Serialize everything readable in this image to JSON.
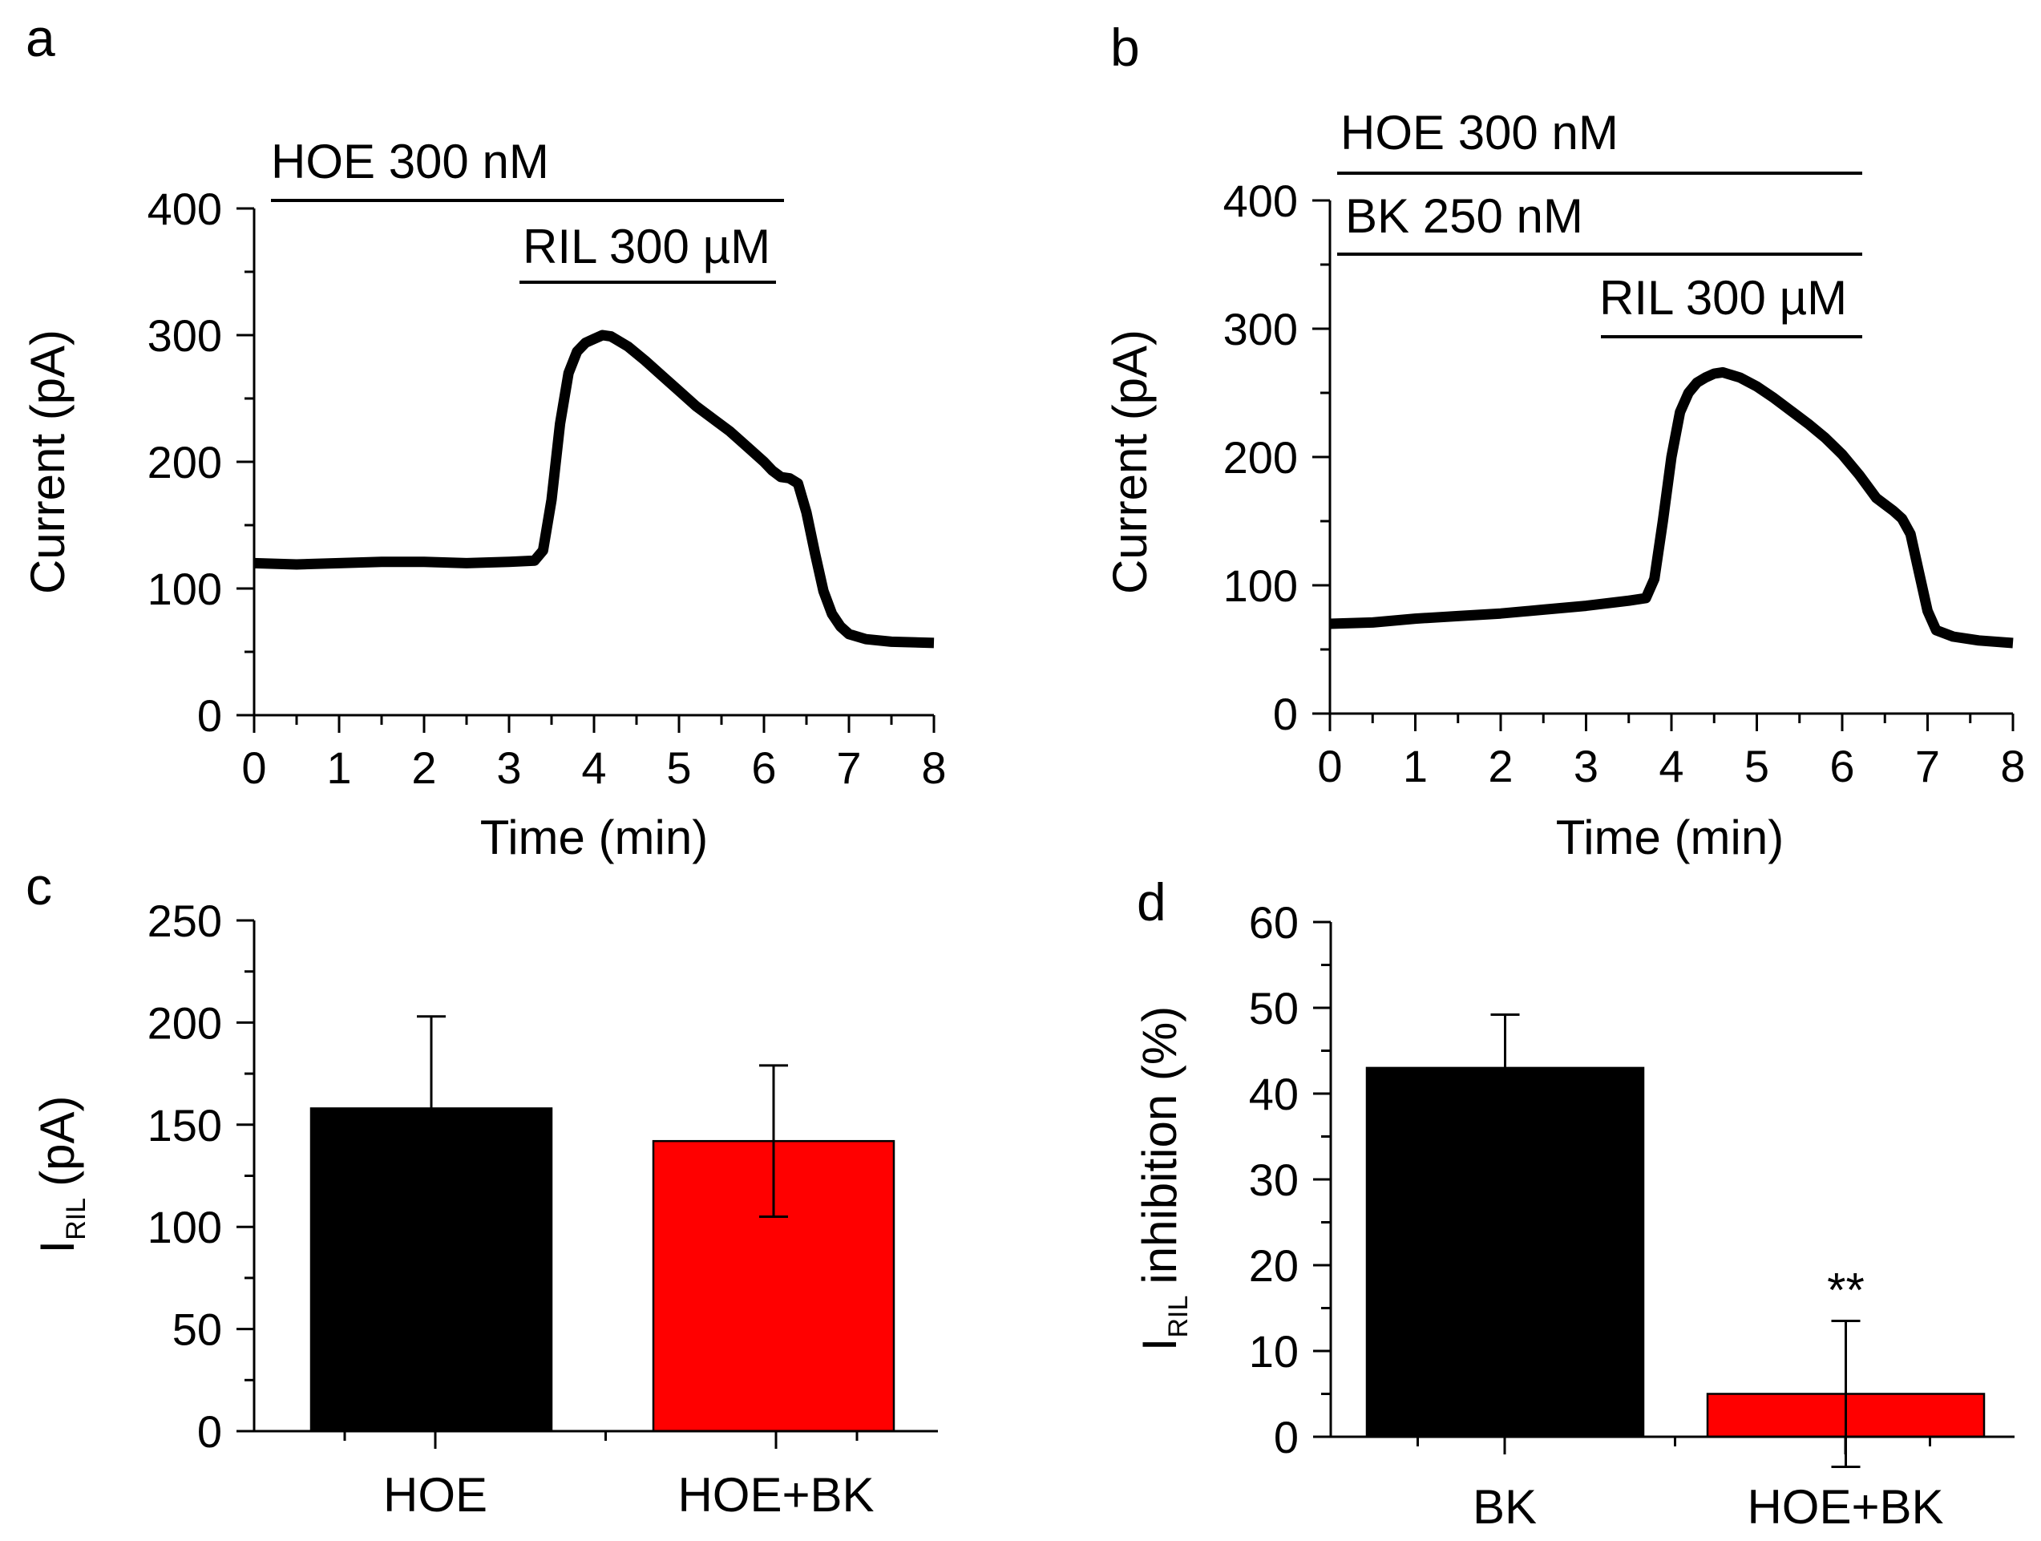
{
  "chart_data": [
    {
      "panel": "a",
      "type": "line",
      "xlabel": "Time (min)",
      "ylabel": "Current (pA)",
      "xlim": [
        0,
        8
      ],
      "ylim": [
        0,
        400
      ],
      "xticks": [
        "0",
        "1",
        "2",
        "3",
        "4",
        "5",
        "6",
        "7",
        "8"
      ],
      "yticks": [
        "0",
        "100",
        "200",
        "300",
        "400"
      ],
      "bars": [
        {
          "label": "HOE 300 nM",
          "start": 0.2,
          "end": 6.2
        },
        {
          "label": "RIL 300 µM",
          "start": 3.1,
          "end": 6.1
        }
      ],
      "series": [
        {
          "name": "trace",
          "x": [
            0,
            0.5,
            1,
            1.5,
            2,
            2.5,
            3,
            3.3,
            3.4,
            3.5,
            3.6,
            3.7,
            3.8,
            3.9,
            4.0,
            4.1,
            4.2,
            4.4,
            4.6,
            4.8,
            5.0,
            5.2,
            5.4,
            5.6,
            5.8,
            6.0,
            6.1,
            6.2,
            6.3,
            6.4,
            6.5,
            6.6,
            6.7,
            6.8,
            6.9,
            7.0,
            7.2,
            7.5,
            8.0
          ],
          "y": [
            120,
            119,
            120,
            121,
            121,
            120,
            121,
            122,
            130,
            170,
            230,
            270,
            287,
            294,
            297,
            300,
            299,
            291,
            280,
            268,
            256,
            244,
            234,
            224,
            212,
            200,
            193,
            188,
            187,
            183,
            160,
            128,
            98,
            80,
            70,
            64,
            60,
            58,
            57
          ]
        }
      ]
    },
    {
      "panel": "b",
      "type": "line",
      "xlabel": "Time (min)",
      "ylabel": "Current (pA)",
      "xlim": [
        0,
        8
      ],
      "ylim": [
        0,
        400
      ],
      "xticks": [
        "0",
        "1",
        "2",
        "3",
        "4",
        "5",
        "6",
        "7",
        "8"
      ],
      "yticks": [
        "0",
        "100",
        "200",
        "300",
        "400"
      ],
      "bars": [
        {
          "label": "HOE 300 nM",
          "start": 0.1,
          "end": 6.2
        },
        {
          "label": "BK 250 nM",
          "start": 0.1,
          "end": 6.2
        },
        {
          "label": "RIL 300 µM",
          "start": 3.1,
          "end": 6.2
        }
      ],
      "series": [
        {
          "name": "trace",
          "x": [
            0,
            0.5,
            1,
            1.5,
            2,
            2.5,
            3,
            3.5,
            3.7,
            3.8,
            3.9,
            4.0,
            4.1,
            4.2,
            4.3,
            4.4,
            4.5,
            4.6,
            4.8,
            5.0,
            5.2,
            5.4,
            5.6,
            5.8,
            6.0,
            6.2,
            6.4,
            6.6,
            6.7,
            6.8,
            6.9,
            7.0,
            7.1,
            7.3,
            7.6,
            8.0
          ],
          "y": [
            70,
            71,
            74,
            76,
            78,
            81,
            84,
            88,
            90,
            105,
            150,
            200,
            235,
            250,
            258,
            262,
            265,
            266,
            262,
            255,
            246,
            236,
            226,
            215,
            202,
            186,
            168,
            158,
            152,
            140,
            110,
            80,
            65,
            60,
            57,
            55
          ]
        }
      ]
    },
    {
      "panel": "c",
      "type": "bar",
      "ylabel": "I",
      "ylabel_subscript": "RIL",
      "ylabel_suffix": "(pA)",
      "ylim": [
        0,
        250
      ],
      "yticks": [
        "0",
        "50",
        "100",
        "150",
        "200",
        "250"
      ],
      "categories": [
        "HOE",
        "HOE+BK"
      ],
      "values": [
        158,
        142
      ],
      "errors": [
        45,
        37
      ],
      "colors": [
        "#000000",
        "#ff0000"
      ]
    },
    {
      "panel": "d",
      "type": "bar",
      "ylabel": "I",
      "ylabel_subscript": "RIL",
      "ylabel_suffix": "inhibition (%)",
      "ylim": [
        0,
        60
      ],
      "yticks": [
        "0",
        "10",
        "20",
        "30",
        "40",
        "50",
        "60"
      ],
      "categories": [
        "BK",
        "HOE+BK"
      ],
      "values": [
        43,
        5
      ],
      "errors": [
        6.2,
        8.5
      ],
      "colors": [
        "#000000",
        "#ff0000"
      ],
      "annotation": "**"
    }
  ]
}
